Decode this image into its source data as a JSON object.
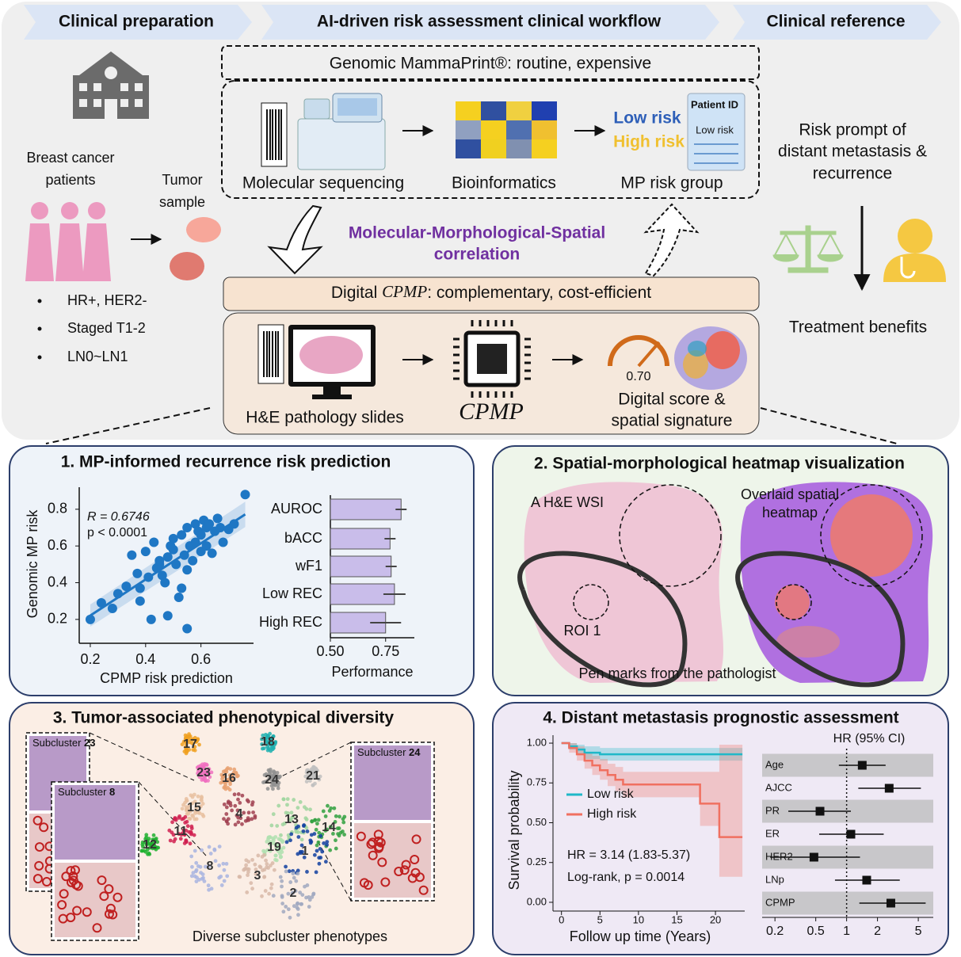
{
  "header": {
    "steps": [
      "Clinical preparation",
      "AI-driven risk assessment clinical workflow",
      "Clinical reference"
    ]
  },
  "preparation": {
    "patients": [
      "Breast cancer",
      "patients"
    ],
    "sample": [
      "Tumor",
      "sample"
    ],
    "criteria": [
      "HR+, HER2-",
      "Staged T1-2",
      "LN0~LN1"
    ]
  },
  "genomic": {
    "title": "Genomic MammaPrint®: routine, expensive",
    "steps": [
      "Molecular sequencing",
      "Bioinformatics",
      "MP risk group"
    ],
    "risk_labels": [
      "Low risk",
      "High risk"
    ],
    "card": [
      "Patient ID",
      "Low risk"
    ]
  },
  "correlation": [
    "Molecular-Morphological-Spatial",
    "correlation"
  ],
  "digital": {
    "title": [
      "Digital ",
      "CPMP",
      ": complementary, cost-efficient"
    ],
    "steps": [
      "H&E pathology slides",
      "CPMP"
    ],
    "output": [
      "Digital score &",
      "spatial signature"
    ],
    "score": "0.70"
  },
  "reference": {
    "prompt": [
      "Risk prompt of",
      "distant metastasis &",
      "recurrence"
    ],
    "benefit": "Treatment benefits"
  },
  "panel1": {
    "title": "1. MP-informed recurrence risk prediction",
    "scatter": {
      "type": "scatter",
      "xlabel": "CPMP risk prediction",
      "ylabel": "Genomic MP risk",
      "xlim": [
        0.16,
        0.79
      ],
      "ylim": [
        0.07,
        0.92
      ],
      "xticks": [
        0.2,
        0.4,
        0.6
      ],
      "yticks": [
        0.2,
        0.4,
        0.6,
        0.8
      ],
      "stats": [
        "R = 0.6746",
        "p <  0.0001"
      ],
      "color": "#1f77c4",
      "x": [
        0.2,
        0.24,
        0.28,
        0.3,
        0.33,
        0.35,
        0.37,
        0.38,
        0.4,
        0.41,
        0.42,
        0.43,
        0.44,
        0.45,
        0.46,
        0.47,
        0.48,
        0.49,
        0.5,
        0.5,
        0.51,
        0.52,
        0.53,
        0.54,
        0.55,
        0.55,
        0.56,
        0.57,
        0.58,
        0.58,
        0.59,
        0.6,
        0.6,
        0.61,
        0.62,
        0.62,
        0.63,
        0.64,
        0.65,
        0.66,
        0.67,
        0.68,
        0.7,
        0.72,
        0.76,
        0.48,
        0.53,
        0.38,
        0.55,
        0.45
      ],
      "y": [
        0.2,
        0.29,
        0.26,
        0.34,
        0.38,
        0.55,
        0.45,
        0.3,
        0.57,
        0.43,
        0.2,
        0.62,
        0.48,
        0.5,
        0.44,
        0.4,
        0.54,
        0.6,
        0.58,
        0.64,
        0.5,
        0.32,
        0.66,
        0.55,
        0.7,
        0.47,
        0.6,
        0.52,
        0.62,
        0.72,
        0.68,
        0.57,
        0.66,
        0.74,
        0.6,
        0.7,
        0.72,
        0.56,
        0.68,
        0.75,
        0.7,
        0.62,
        0.69,
        0.72,
        0.88,
        0.22,
        0.37,
        0.37,
        0.15,
        0.52
      ]
    },
    "bars": {
      "type": "bar",
      "categories": [
        "AUROC",
        "bACC",
        "wF1",
        "Low REC",
        "High REC"
      ],
      "values": [
        0.82,
        0.77,
        0.775,
        0.79,
        0.75
      ],
      "errors": [
        0.025,
        0.025,
        0.025,
        0.05,
        0.07
      ],
      "xlim": [
        0.5,
        0.88
      ],
      "xticks": [
        {
          "value": 0.5,
          "label": "0.50"
        },
        {
          "value": 0.75,
          "label": "0.75"
        }
      ],
      "xlabel": "Performance",
      "color": "#c9bdea"
    }
  },
  "panel2": {
    "title": "2. Spatial-morphological heatmap visualization",
    "wsi_label": "A H&E WSI",
    "heatmap_label": [
      "Overlaid spatial",
      "heatmap"
    ],
    "roi": "ROI 1",
    "pen": "Pen marks from the pathologist"
  },
  "panel3": {
    "title": "3. Tumor-associated phenotypical diversity",
    "subclusters": [
      {
        "name": "Subcluster",
        "id": "23"
      },
      {
        "name": "Subcluster",
        "id": "8"
      },
      {
        "name": "Subcluster",
        "id": "24"
      }
    ],
    "clusters": [
      {
        "label": "17",
        "color": "#f0a020"
      },
      {
        "label": "18",
        "color": "#20b0b0"
      },
      {
        "label": "23",
        "color": "#f070c0"
      },
      {
        "label": "16",
        "color": "#e8a070"
      },
      {
        "label": "24",
        "color": "#909090"
      },
      {
        "label": "21",
        "color": "#c0c0c0"
      },
      {
        "label": "15",
        "color": "#e8c0a0"
      },
      {
        "label": "4",
        "color": "#a04050"
      },
      {
        "label": "13",
        "color": "#9fd59f"
      },
      {
        "label": "14",
        "color": "#30a040"
      },
      {
        "label": "11",
        "color": "#d02050"
      },
      {
        "label": "12",
        "color": "#20b030"
      },
      {
        "label": "19",
        "color": "#b0e0b0"
      },
      {
        "label": "1",
        "color": "#1040a0"
      },
      {
        "label": "8",
        "color": "#a8b4e0"
      },
      {
        "label": "3",
        "color": "#d8b8a8"
      },
      {
        "label": "2",
        "color": "#a0a8c0"
      }
    ],
    "footer": "Diverse subcluster phenotypes"
  },
  "panel4": {
    "title": "4. Distant metastasis prognostic assessment",
    "km": {
      "type": "line",
      "xlabel": "Follow up time (Years)",
      "ylabel": "Survival probability",
      "xlim": [
        -1.1,
        23.8
      ],
      "ylim": [
        -0.055,
        1.05
      ],
      "xticks": [
        0,
        5,
        10,
        15,
        20
      ],
      "yticks": [
        {
          "value": 0,
          "label": "0.00"
        },
        {
          "value": 0.25,
          "label": "0.25"
        },
        {
          "value": 0.5,
          "label": "0.50"
        },
        {
          "value": 0.75,
          "label": "0.75"
        },
        {
          "value": 1,
          "label": "1.00"
        }
      ],
      "series": [
        {
          "name": "Low risk",
          "color": "#1fb8c8",
          "x": [
            0,
            1,
            1,
            2,
            2,
            3,
            3,
            5,
            5,
            23.5
          ],
          "values": [
            1,
            1,
            0.98,
            0.98,
            0.96,
            0.96,
            0.94,
            0.94,
            0.93,
            0.93
          ],
          "lower": [
            1,
            1,
            0.96,
            0.96,
            0.93,
            0.93,
            0.9,
            0.9,
            0.89,
            0.89
          ],
          "upper": [
            1,
            1,
            1,
            1,
            0.99,
            0.99,
            0.98,
            0.98,
            0.97,
            0.97
          ]
        },
        {
          "name": "High risk",
          "color": "#f07060",
          "x": [
            0,
            1,
            1,
            2,
            2,
            3,
            3,
            4,
            4,
            5,
            5,
            6,
            6,
            7,
            7,
            8,
            8,
            18,
            18,
            20.5,
            20.5,
            23.5
          ],
          "values": [
            1,
            1,
            0.97,
            0.97,
            0.93,
            0.93,
            0.89,
            0.89,
            0.86,
            0.86,
            0.83,
            0.83,
            0.8,
            0.8,
            0.77,
            0.77,
            0.74,
            0.74,
            0.62,
            0.62,
            0.41,
            0.41
          ],
          "lower": [
            1,
            1,
            0.94,
            0.94,
            0.89,
            0.89,
            0.84,
            0.84,
            0.8,
            0.8,
            0.77,
            0.77,
            0.73,
            0.73,
            0.7,
            0.7,
            0.66,
            0.66,
            0.48,
            0.48,
            0.16,
            0.16
          ],
          "upper": [
            1,
            1,
            1,
            1,
            0.98,
            0.98,
            0.94,
            0.94,
            0.92,
            0.92,
            0.9,
            0.9,
            0.87,
            0.87,
            0.85,
            0.85,
            0.82,
            0.82,
            0.82,
            0.82,
            0.99,
            0.99
          ]
        }
      ],
      "annotations": [
        "HR = 3.14 (1.83-5.37)",
        "Log-rank, p = 0.0014"
      ]
    },
    "forest": {
      "type": "forest",
      "header": "HR (95% CI)",
      "log_scale": true,
      "xlim": [
        0.15,
        7
      ],
      "xticks": [
        0.2,
        0.5,
        1,
        2,
        5
      ],
      "reference": 1,
      "rows": [
        {
          "label": "Age",
          "hr": 1.42,
          "lo": 0.84,
          "hi": 2.4
        },
        {
          "label": "AJCC",
          "hr": 2.6,
          "lo": 1.3,
          "hi": 5.3
        },
        {
          "label": "PR",
          "hr": 0.55,
          "lo": 0.27,
          "hi": 1.1
        },
        {
          "label": "ER",
          "hr": 1.1,
          "lo": 0.54,
          "hi": 2.3
        },
        {
          "label": "HER2",
          "hr": 0.48,
          "lo": 0.18,
          "hi": 1.35
        },
        {
          "label": "LNp",
          "hr": 1.57,
          "lo": 0.77,
          "hi": 3.3
        },
        {
          "label": "CPMP",
          "hr": 2.7,
          "lo": 1.33,
          "hi": 5.9
        }
      ]
    }
  }
}
